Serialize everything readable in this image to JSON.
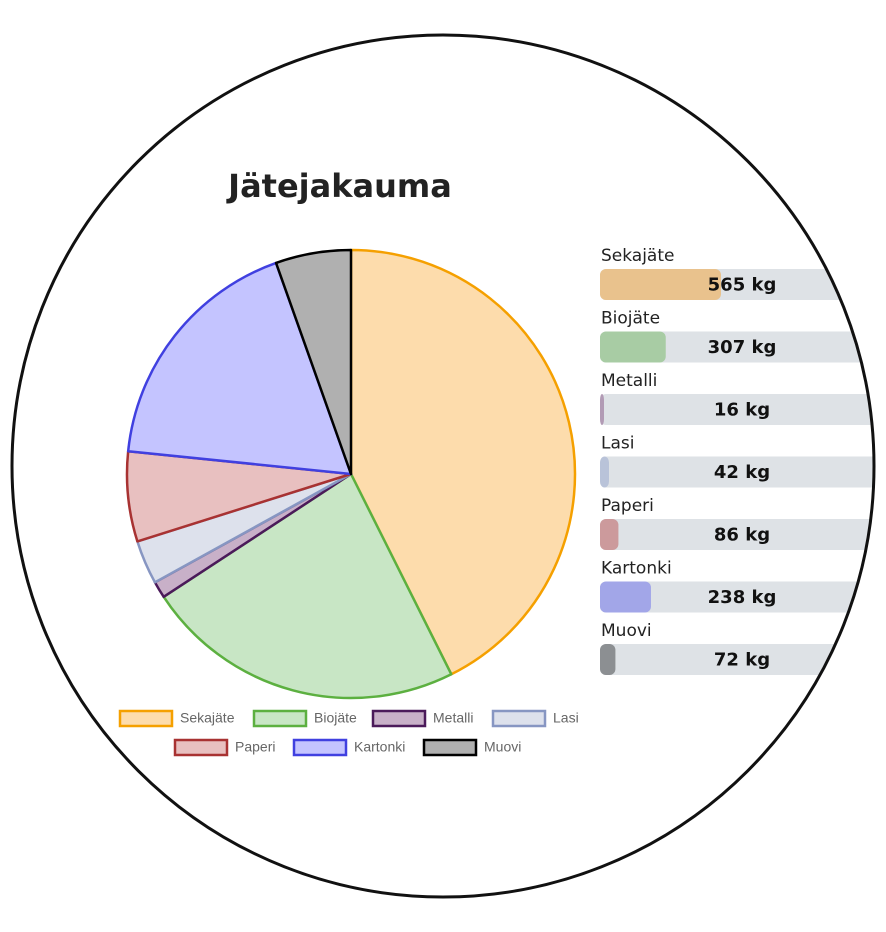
{
  "chart_data": {
    "type": "pie",
    "title": "Jätejakauma",
    "categories": [
      "Sekajäte",
      "Biojäte",
      "Metalli",
      "Lasi",
      "Paperi",
      "Kartonki",
      "Muovi"
    ],
    "values": [
      565,
      307,
      16,
      42,
      86,
      238,
      72
    ],
    "value_labels": [
      "565 kg",
      "307 kg",
      "16 kg",
      "42 kg",
      "86 kg",
      "238 kg",
      "72 kg"
    ],
    "colors": [
      "#f5a000",
      "#5cb040",
      "#4b1a5a",
      "#8796c2",
      "#a83232",
      "#4040e0",
      "#000000"
    ],
    "fill_colors": [
      "#fddcac",
      "#c8e6c5",
      "#c8b0c8",
      "#dde1ec",
      "#e8c0c0",
      "#c4c4ff",
      "#b0b0b0"
    ],
    "bar_colors": [
      "#e9c28d",
      "#a8cca4",
      "#b29bb5",
      "#b9c3d9",
      "#cc9a9c",
      "#a2a6e8",
      "#8c8f92"
    ]
  }
}
